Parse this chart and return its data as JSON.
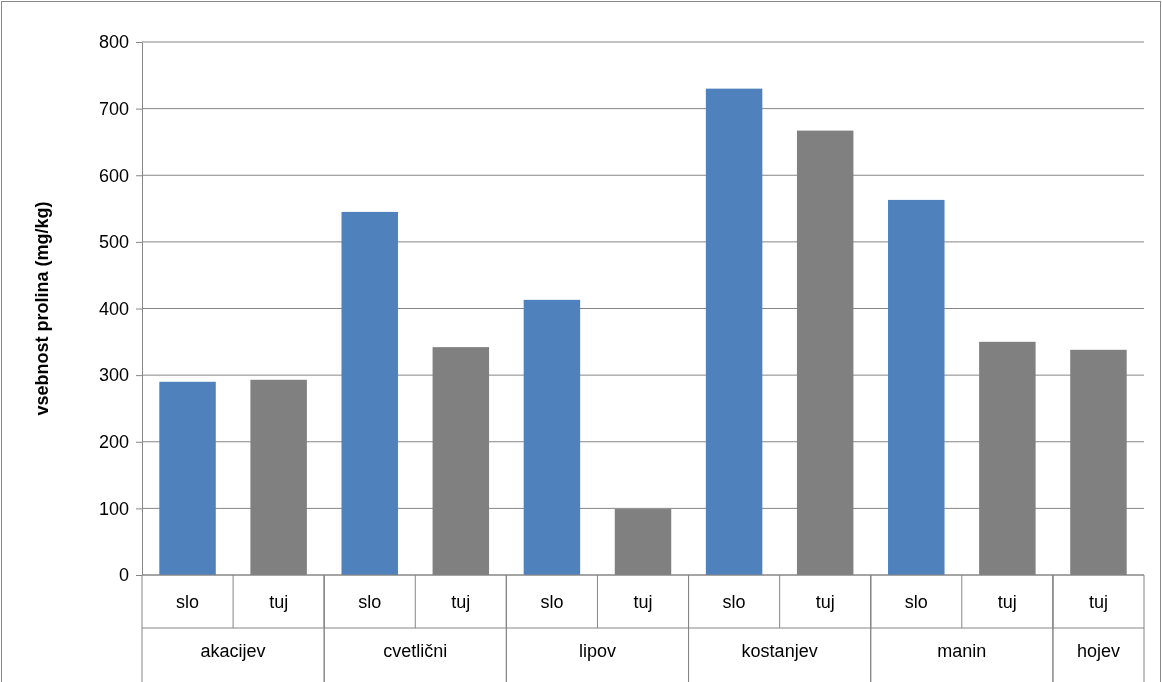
{
  "chart_data": {
    "type": "bar",
    "ylabel": "vsebnost prolina (mg/kg)",
    "categories": [
      "akacijev",
      "cvetlični",
      "lipov",
      "kostanjev",
      "manin",
      "hojev"
    ],
    "series": [
      {
        "name": "slo",
        "color": "#4f81bd",
        "values": [
          290,
          545,
          413,
          730,
          563,
          null
        ]
      },
      {
        "name": "tuj",
        "color": "#808080",
        "values": [
          293,
          342,
          99,
          667,
          350,
          338
        ]
      }
    ],
    "ylim": [
      0,
      800
    ],
    "yticks": [
      0,
      100,
      200,
      300,
      400,
      500,
      600,
      700,
      800
    ],
    "grid": "y"
  }
}
